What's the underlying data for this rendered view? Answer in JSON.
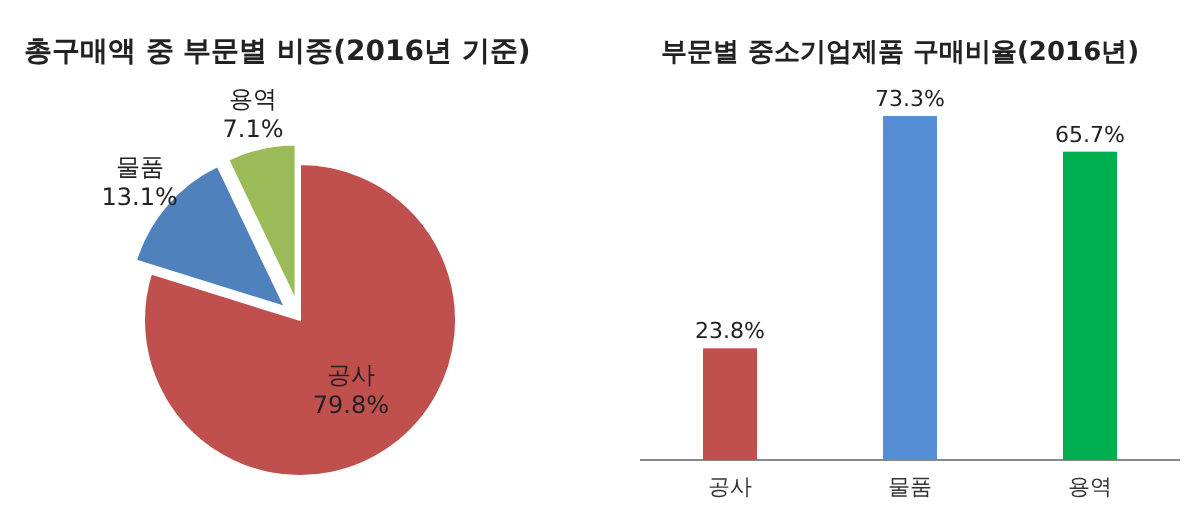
{
  "chart_data": [
    {
      "type": "pie",
      "title": "총구매액 중 부문별 비중(2016년 기준)",
      "categories": [
        "공사",
        "물품",
        "용역"
      ],
      "values": [
        79.8,
        13.1,
        7.1
      ],
      "colors": [
        "#c0504d",
        "#4f81bd",
        "#9bbb59"
      ],
      "value_labels": [
        "79.8%",
        "13.1%",
        "7.1%"
      ]
    },
    {
      "type": "bar",
      "title": "부문별 중소기업제품 구매비율(2016년)",
      "categories": [
        "공사",
        "물품",
        "용역"
      ],
      "values": [
        23.8,
        73.3,
        65.7
      ],
      "colors": [
        "#c0504d",
        "#558ed5",
        "#00b050"
      ],
      "value_labels": [
        "23.8%",
        "73.3%",
        "65.7%"
      ]
    }
  ]
}
